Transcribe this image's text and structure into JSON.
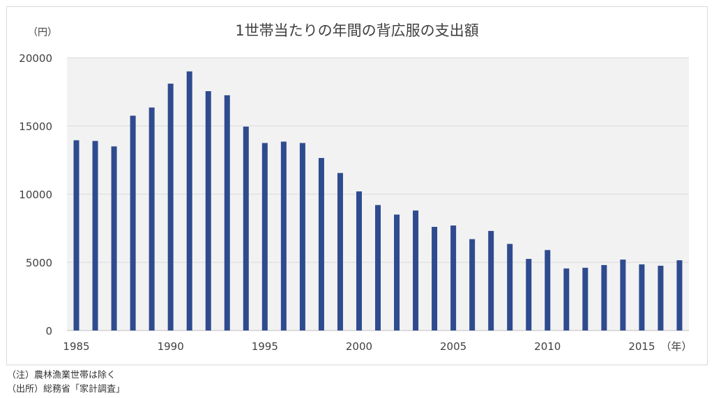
{
  "chart_data": {
    "type": "bar",
    "title": "1世帯当たりの年間の背広服の支出額",
    "ylabel": "（円）",
    "xlabel": "（年）",
    "ylim": [
      0,
      20000
    ],
    "yticks": [
      0,
      5000,
      10000,
      15000,
      20000
    ],
    "xtick_labels": [
      "1985",
      "1990",
      "1995",
      "2000",
      "2005",
      "2010",
      "2015"
    ],
    "grid": true,
    "bar_color": "#2F4B8F",
    "plot_background": "#f2f2f2",
    "categories": [
      1985,
      1986,
      1987,
      1988,
      1989,
      1990,
      1991,
      1992,
      1993,
      1994,
      1995,
      1996,
      1997,
      1998,
      1999,
      2000,
      2001,
      2002,
      2003,
      2004,
      2005,
      2006,
      2007,
      2008,
      2009,
      2010,
      2011,
      2012,
      2013,
      2014,
      2015,
      2016,
      2017
    ],
    "values": [
      13950,
      13900,
      13500,
      15750,
      16350,
      18100,
      19000,
      17550,
      17250,
      14950,
      13750,
      13850,
      13750,
      12650,
      11550,
      10200,
      9200,
      8500,
      8800,
      7600,
      7700,
      6700,
      7300,
      6350,
      5250,
      5900,
      4550,
      4600,
      4800,
      5200,
      4850,
      4750,
      5150
    ]
  },
  "notes": {
    "note1": "（注）農林漁業世帯は除く",
    "note2": "（出所）総務省「家計調査」"
  }
}
